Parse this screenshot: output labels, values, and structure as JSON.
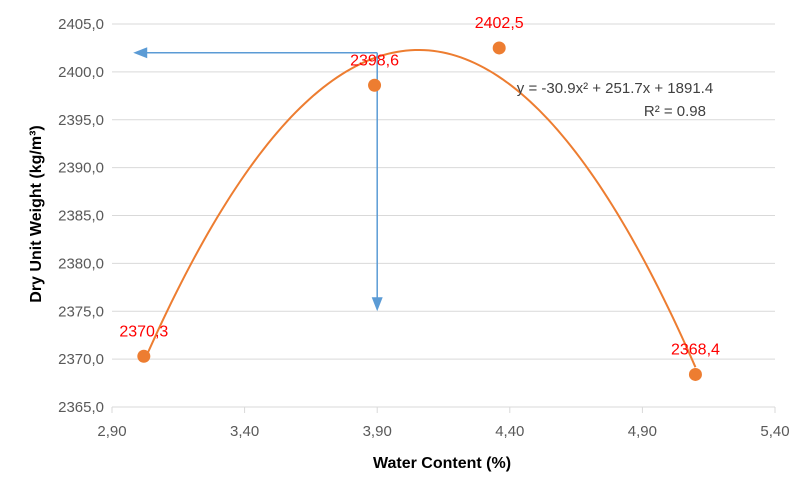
{
  "chart_data": {
    "type": "scatter",
    "title": "",
    "xlabel": "Water Content (%)",
    "ylabel": "Dry Unit Weight (kg/m³)",
    "xlim": [
      2.9,
      5.4
    ],
    "ylim": [
      2365.0,
      2405.0
    ],
    "x_ticks": [
      "2,90",
      "3,40",
      "3,90",
      "4,40",
      "4,90",
      "5,40"
    ],
    "y_ticks": [
      "2365,0",
      "2370,0",
      "2375,0",
      "2380,0",
      "2385,0",
      "2390,0",
      "2395,0",
      "2400,0",
      "2405,0"
    ],
    "grid": "horizontal",
    "points": [
      {
        "x": 3.02,
        "y": 2370.3,
        "label": "2370,3"
      },
      {
        "x": 3.89,
        "y": 2398.6,
        "label": "2398,6"
      },
      {
        "x": 4.36,
        "y": 2402.5,
        "label": "2402,5"
      },
      {
        "x": 5.1,
        "y": 2368.4,
        "label": "2368,4"
      }
    ],
    "trendline": {
      "type": "polynomial",
      "order": 2,
      "equation": "y = -30.9x² + 251.7x + 1891.4",
      "r_squared": "R² = 0.98"
    },
    "annotations": [
      {
        "type": "arrow",
        "direction": "left",
        "x_from": 3.9,
        "x_to": 2.98,
        "y": 2402.0
      },
      {
        "type": "arrow",
        "direction": "down",
        "x": 3.9,
        "y_from": 2402.0,
        "y_to": 2375.0
      }
    ],
    "colors": {
      "points": "#ed7d31",
      "trendline": "#ed7d31",
      "arrows": "#5b9bd5",
      "data_labels": "#ff0000",
      "grid": "#d9d9d9",
      "tick_text": "#595959"
    }
  }
}
